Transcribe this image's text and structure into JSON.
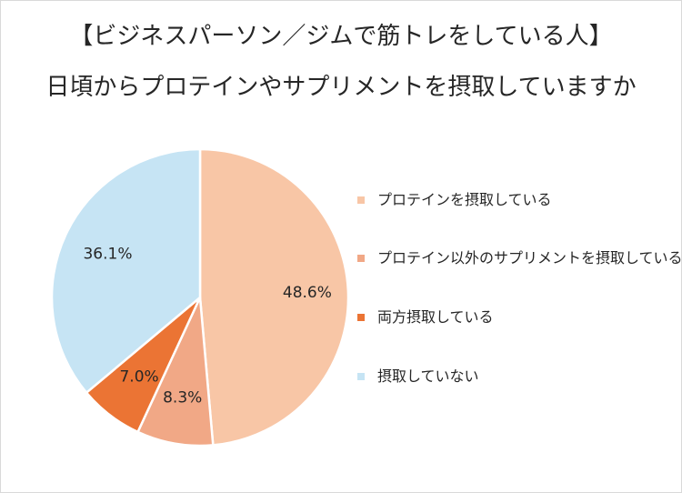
{
  "chart_data": {
    "type": "pie",
    "title": "【ビジネスパーソン／ジムで筋トレをしている人】",
    "subtitle": "日頃からプロテインやサプリメントを摂取していますか",
    "slices": [
      {
        "name": "プロテインを摂取している",
        "value": 48.6,
        "label": "48.6%",
        "color": "#f8c6a6"
      },
      {
        "name": "プロテイン以外のサプリメントを摂取している",
        "value": 8.3,
        "label": "8.3%",
        "color": "#f1a886"
      },
      {
        "name": "両方摂取している",
        "value": 7.0,
        "label": "7.0%",
        "color": "#eb7434"
      },
      {
        "name": "摂取していない",
        "value": 36.1,
        "label": "36.1%",
        "color": "#c6e4f4"
      }
    ],
    "legend_position": "right"
  }
}
